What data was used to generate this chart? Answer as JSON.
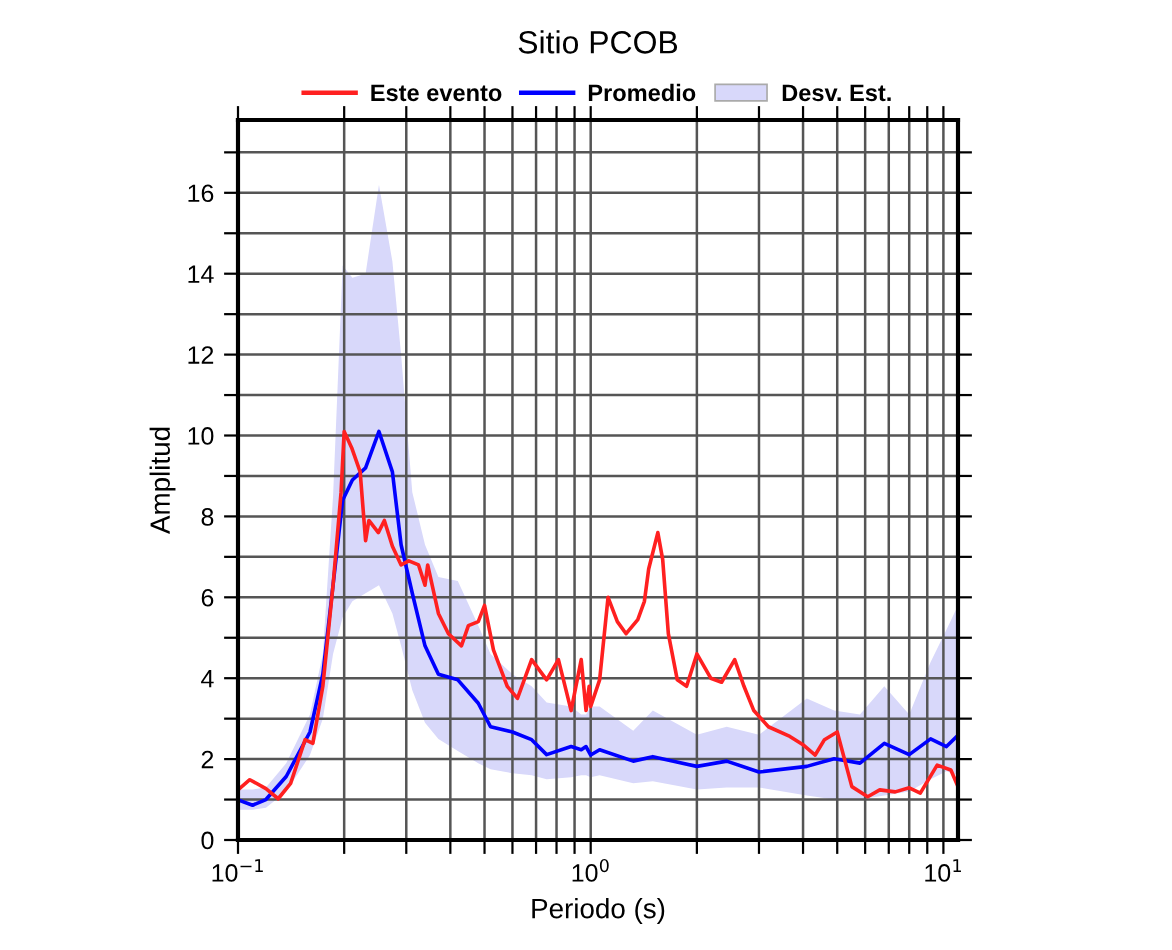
{
  "chart_data": {
    "type": "line",
    "title": "Sitio PCOB",
    "xlabel": "Periodo (s)",
    "ylabel": "Amplitud",
    "log": "x",
    "grid": true,
    "legend": "top",
    "line_style": "solid",
    "marker": "none",
    "xlim": [
      0.1,
      11
    ],
    "ylim": [
      0,
      17.8
    ],
    "xticks": [
      {
        "value": 0.1,
        "label": "10$^{−1}$"
      },
      {
        "value": 0.2,
        "label": null
      },
      {
        "value": 0.3,
        "label": null
      },
      {
        "value": 0.4,
        "label": null
      },
      {
        "value": 0.5,
        "label": null
      },
      {
        "value": 0.6,
        "label": null
      },
      {
        "value": 0.7,
        "label": null
      },
      {
        "value": 0.8,
        "label": null
      },
      {
        "value": 0.9,
        "label": null
      },
      {
        "value": 1,
        "label": "10$^{0}$"
      },
      {
        "value": 2,
        "label": null
      },
      {
        "value": 3,
        "label": null
      },
      {
        "value": 4,
        "label": null
      },
      {
        "value": 5,
        "label": null
      },
      {
        "value": 6,
        "label": null
      },
      {
        "value": 7,
        "label": null
      },
      {
        "value": 8,
        "label": null
      },
      {
        "value": 9,
        "label": null
      },
      {
        "value": 10,
        "label": "10$^{1}$"
      }
    ],
    "yticks": [
      0,
      {
        "value": 1,
        "label": null
      },
      2,
      {
        "value": 3,
        "label": null
      },
      4,
      {
        "value": 5,
        "label": null
      },
      6,
      {
        "value": 7,
        "label": null
      },
      8,
      {
        "value": 9,
        "label": null
      },
      10,
      {
        "value": 11,
        "label": null
      },
      12,
      {
        "value": 13,
        "label": null
      },
      14,
      {
        "value": 15,
        "label": null
      },
      16,
      {
        "value": 17,
        "label": null
      }
    ],
    "series": [
      {
        "name": "Desv. Est.",
        "type": "area",
        "color": "#d8d8fa",
        "x": [
          0.1,
          0.11,
          0.12,
          0.137,
          0.16,
          0.174,
          0.186,
          0.198,
          0.211,
          0.23,
          0.251,
          0.274,
          0.29,
          0.312,
          0.339,
          0.37,
          0.42,
          0.48,
          0.52,
          0.6,
          0.68,
          0.75,
          0.88,
          0.94,
          0.97,
          1.0,
          1.06,
          1.32,
          1.5,
          2.0,
          2.43,
          3.0,
          4.1,
          4.9,
          5.8,
          6.8,
          8.0,
          9.2,
          10.2,
          11.0
        ],
        "values": [
          null,
          null,
          null,
          null,
          null,
          null,
          null,
          null,
          null,
          null,
          null,
          null,
          null,
          null,
          null,
          null,
          null,
          null,
          null,
          null,
          null,
          null,
          null,
          null,
          null,
          null,
          null,
          null,
          null,
          null,
          null,
          null,
          null,
          null,
          null,
          null,
          null,
          null,
          null,
          null
        ],
        "lower": [
          0.75,
          0.75,
          0.8,
          1.2,
          2.1,
          3.0,
          4.6,
          5.5,
          5.9,
          6.1,
          6.3,
          5.6,
          4.8,
          3.7,
          2.9,
          2.5,
          2.2,
          1.9,
          1.75,
          1.65,
          1.6,
          1.5,
          1.55,
          1.6,
          1.6,
          1.55,
          1.6,
          1.4,
          1.45,
          1.25,
          1.3,
          1.3,
          1.1,
          1.0,
          1.0,
          1.1,
          1.2,
          1.5,
          1.7,
          1.6
        ],
        "upper": [
          1.25,
          1.25,
          1.3,
          1.9,
          3.1,
          4.6,
          8.5,
          14.2,
          13.9,
          14.0,
          16.2,
          14.3,
          12.0,
          8.6,
          7.3,
          6.5,
          6.4,
          5.3,
          4.6,
          4.1,
          3.8,
          3.4,
          3.3,
          3.1,
          3.1,
          3.3,
          3.3,
          2.7,
          3.2,
          2.6,
          2.8,
          2.6,
          3.5,
          3.2,
          3.1,
          3.8,
          3.1,
          4.4,
          5.2,
          5.8
        ]
      },
      {
        "name": "Este evento",
        "color": "#ff2020",
        "x": [
          0.1,
          0.108,
          0.12,
          0.13,
          0.141,
          0.155,
          0.163,
          0.174,
          0.186,
          0.196,
          0.2,
          0.21,
          0.222,
          0.23,
          0.235,
          0.25,
          0.26,
          0.274,
          0.29,
          0.305,
          0.325,
          0.339,
          0.345,
          0.37,
          0.395,
          0.43,
          0.45,
          0.48,
          0.5,
          0.53,
          0.58,
          0.62,
          0.68,
          0.75,
          0.81,
          0.88,
          0.94,
          0.97,
          0.99,
          1.0,
          1.06,
          1.12,
          1.19,
          1.26,
          1.36,
          1.42,
          1.46,
          1.55,
          1.6,
          1.66,
          1.76,
          1.87,
          2.0,
          2.19,
          2.35,
          2.56,
          2.72,
          2.9,
          3.19,
          3.67,
          4.02,
          4.33,
          4.6,
          5.0,
          5.5,
          6.1,
          6.6,
          7.3,
          8.0,
          8.6,
          9.6,
          10.5,
          11.0
        ],
        "values": [
          1.24,
          1.49,
          1.27,
          1.02,
          1.4,
          2.48,
          2.39,
          3.8,
          6.3,
          8.6,
          10.1,
          9.7,
          9.1,
          7.4,
          7.9,
          7.6,
          7.9,
          7.26,
          6.8,
          6.9,
          6.8,
          6.3,
          6.8,
          5.6,
          5.1,
          4.8,
          5.3,
          5.4,
          5.8,
          4.7,
          3.8,
          3.5,
          4.46,
          3.96,
          4.46,
          3.2,
          4.46,
          3.2,
          3.8,
          3.3,
          3.96,
          6.0,
          5.4,
          5.1,
          5.45,
          5.9,
          6.7,
          7.6,
          6.93,
          5.1,
          3.96,
          3.8,
          4.6,
          4.0,
          3.9,
          4.46,
          3.8,
          3.2,
          2.8,
          2.56,
          2.34,
          2.1,
          2.48,
          2.67,
          1.32,
          1.07,
          1.24,
          1.19,
          1.29,
          1.16,
          1.85,
          1.73,
          1.32
        ]
      },
      {
        "name": "Promedio",
        "color": "#0000ff",
        "x": [
          0.1,
          0.11,
          0.12,
          0.137,
          0.16,
          0.174,
          0.186,
          0.198,
          0.211,
          0.23,
          0.251,
          0.274,
          0.29,
          0.312,
          0.339,
          0.37,
          0.42,
          0.48,
          0.52,
          0.6,
          0.68,
          0.75,
          0.88,
          0.94,
          0.97,
          1.0,
          1.06,
          1.32,
          1.5,
          2.0,
          2.43,
          3.0,
          4.1,
          4.9,
          5.8,
          6.8,
          8.0,
          9.2,
          10.2,
          11.0
        ],
        "values": [
          0.99,
          0.86,
          1.0,
          1.57,
          2.67,
          4.1,
          6.3,
          8.4,
          8.9,
          9.2,
          10.1,
          9.1,
          7.3,
          6.1,
          4.8,
          4.1,
          3.96,
          3.38,
          2.8,
          2.67,
          2.48,
          2.11,
          2.31,
          2.23,
          2.31,
          2.1,
          2.23,
          1.95,
          2.06,
          1.82,
          1.95,
          1.68,
          1.82,
          2.01,
          1.9,
          2.39,
          2.11,
          2.5,
          2.31,
          2.59
        ]
      }
    ]
  }
}
